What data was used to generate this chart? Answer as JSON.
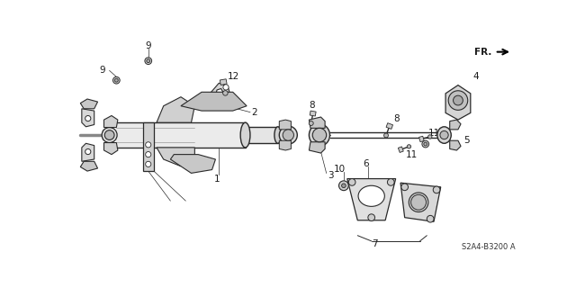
{
  "bg_color": "#ffffff",
  "line_color": "#2a2a2a",
  "label_color": "#1a1a1a",
  "diagram_code": "S2A4-B3200 A",
  "figsize": [
    6.4,
    3.2
  ],
  "dpi": 100,
  "xlim": [
    0,
    640
  ],
  "ylim": [
    0,
    320
  ]
}
